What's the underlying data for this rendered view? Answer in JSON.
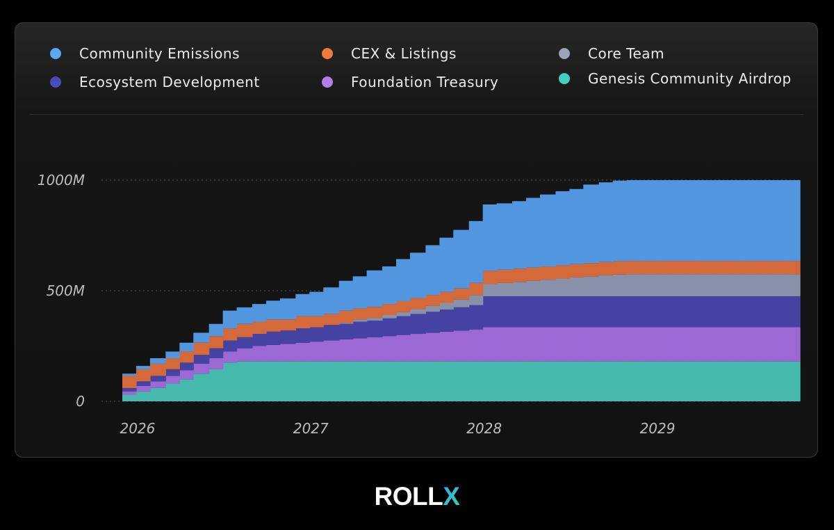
{
  "brand": {
    "prefix": "ROLL",
    "accent": "X"
  },
  "legend": [
    {
      "label": "Community Emissions",
      "color": "#5aa8f2"
    },
    {
      "label": "Ecosystem Development",
      "color": "#4a4ab8"
    },
    {
      "label": "CEX & Listings",
      "color": "#ef7a3b"
    },
    {
      "label": "Foundation Treasury",
      "color": "#b57cec"
    },
    {
      "label": "Core Team",
      "color": "#9da2b8"
    },
    {
      "label": "Genesis Community Airdrop",
      "color": "#41d0ba"
    }
  ],
  "chart_data": {
    "type": "area",
    "step": true,
    "title": "",
    "xlabel": "",
    "ylabel": "",
    "ylim": [
      0,
      1000
    ],
    "y_ticks": [
      {
        "value": 0,
        "label": "0"
      },
      {
        "value": 500,
        "label": "500M"
      },
      {
        "value": 1000,
        "label": "1000M"
      }
    ],
    "x_ticks": [
      {
        "value": 2026.0,
        "label": "2026"
      },
      {
        "value": 2027.0,
        "label": "2027"
      },
      {
        "value": 2028.0,
        "label": "2028"
      },
      {
        "value": 2029.0,
        "label": "2029"
      }
    ],
    "x": [
      2025.92,
      2026.0,
      2026.08,
      2026.17,
      2026.25,
      2026.33,
      2026.42,
      2026.5,
      2026.58,
      2026.67,
      2026.75,
      2026.83,
      2026.92,
      2027.0,
      2027.08,
      2027.17,
      2027.25,
      2027.33,
      2027.42,
      2027.5,
      2027.58,
      2027.67,
      2027.75,
      2027.83,
      2027.92,
      2028.0,
      2028.08,
      2028.17,
      2028.25,
      2028.33,
      2028.42,
      2028.5,
      2028.58,
      2028.67,
      2028.75,
      2028.83,
      2028.92,
      2029.0,
      2029.08,
      2029.17,
      2029.25,
      2029.33,
      2029.42,
      2029.5,
      2029.58,
      2029.67,
      2029.75,
      2029.83
    ],
    "x_end": 2029.83,
    "series": [
      {
        "name": "Genesis Community Airdrop",
        "color": "#45b9ac",
        "values": [
          30,
          45,
          60,
          80,
          100,
          125,
          145,
          175,
          180,
          180,
          180,
          180,
          180,
          180,
          180,
          180,
          180,
          180,
          180,
          180,
          180,
          180,
          180,
          180,
          180,
          180,
          180,
          180,
          180,
          180,
          180,
          180,
          180,
          180,
          180,
          180,
          180,
          180,
          180,
          180,
          180,
          180,
          180,
          180,
          180,
          180,
          180,
          180
        ]
      },
      {
        "name": "Foundation Treasury",
        "color": "#9b68d4",
        "values": [
          15,
          25,
          30,
          35,
          40,
          45,
          50,
          50,
          60,
          70,
          75,
          80,
          85,
          90,
          95,
          100,
          105,
          110,
          115,
          120,
          125,
          130,
          135,
          140,
          145,
          155,
          155,
          155,
          155,
          155,
          155,
          155,
          155,
          155,
          155,
          155,
          155,
          155,
          155,
          155,
          155,
          155,
          155,
          155,
          155,
          155,
          155,
          155
        ]
      },
      {
        "name": "Ecosystem Development",
        "color": "#4442a3",
        "values": [
          15,
          20,
          25,
          30,
          35,
          40,
          45,
          50,
          50,
          55,
          60,
          60,
          65,
          65,
          70,
          70,
          75,
          75,
          80,
          85,
          90,
          95,
          100,
          105,
          110,
          140,
          140,
          140,
          140,
          140,
          140,
          140,
          140,
          140,
          140,
          140,
          140,
          140,
          140,
          140,
          140,
          140,
          140,
          140,
          140,
          140,
          140,
          140
        ]
      },
      {
        "name": "Core Team",
        "color": "#8791a9",
        "values": [
          0,
          0,
          0,
          0,
          0,
          0,
          0,
          0,
          0,
          0,
          0,
          0,
          0,
          0,
          0,
          5,
          10,
          12,
          15,
          18,
          22,
          26,
          30,
          35,
          45,
          55,
          60,
          65,
          70,
          75,
          80,
          85,
          90,
          95,
          98,
          100,
          100,
          100,
          100,
          100,
          100,
          100,
          100,
          100,
          100,
          100,
          100,
          100
        ]
      },
      {
        "name": "CEX & Listings",
        "color": "#d4693a",
        "values": [
          55,
          55,
          55,
          50,
          50,
          55,
          55,
          55,
          60,
          55,
          55,
          50,
          55,
          50,
          50,
          55,
          50,
          50,
          50,
          50,
          50,
          50,
          50,
          50,
          55,
          60,
          60,
          60,
          60,
          60,
          60,
          60,
          60,
          60,
          60,
          60,
          60,
          60,
          60,
          60,
          60,
          60,
          60,
          60,
          60,
          60,
          60,
          60
        ]
      },
      {
        "name": "Community Emissions",
        "color": "#5196df",
        "values": [
          10,
          15,
          25,
          30,
          40,
          45,
          55,
          80,
          75,
          80,
          85,
          95,
          100,
          110,
          120,
          135,
          145,
          165,
          170,
          190,
          205,
          225,
          245,
          265,
          280,
          300,
          300,
          305,
          315,
          325,
          335,
          340,
          355,
          360,
          365,
          365,
          365,
          365,
          365,
          365,
          365,
          365,
          365,
          365,
          365,
          365,
          365,
          365
        ]
      }
    ]
  }
}
